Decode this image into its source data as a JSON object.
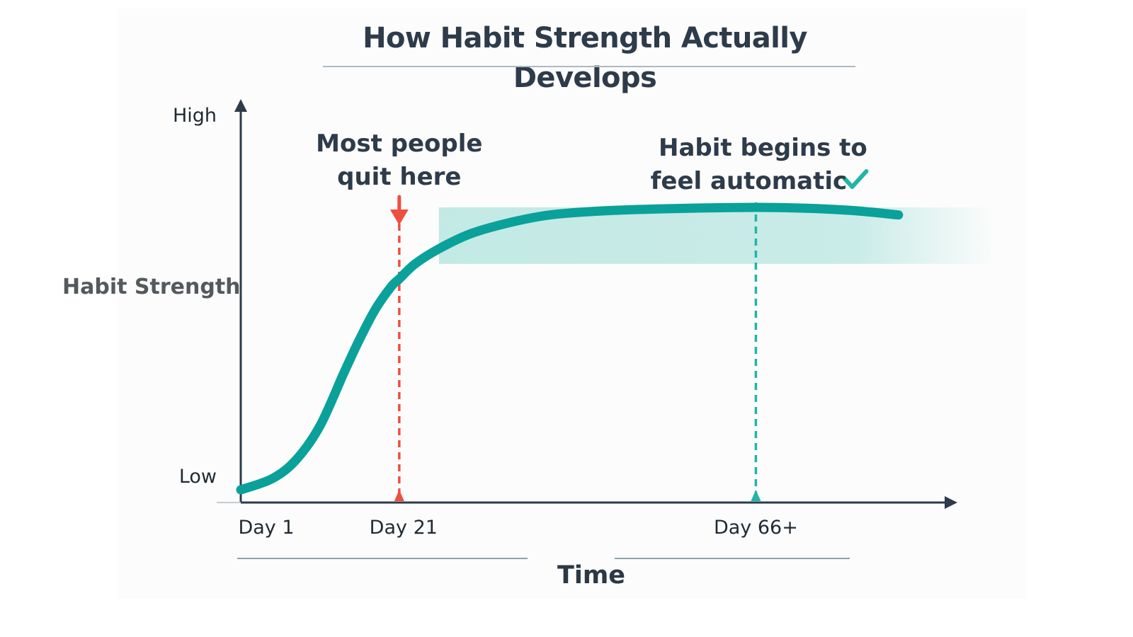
{
  "chart_data": {
    "type": "line",
    "title": "How Habit Strength Actually Develops",
    "xlabel": "Time",
    "ylabel": "Habit Strength",
    "x_ticks": [
      {
        "label": "Day 1",
        "value": 1
      },
      {
        "label": "Day 21",
        "value": 21
      },
      {
        "label": "Day 66+",
        "value": 66
      }
    ],
    "y_ticks": [
      {
        "label": "Low",
        "value": 0
      },
      {
        "label": "High",
        "value": 1
      }
    ],
    "xlim": [
      1,
      90
    ],
    "ylim": [
      0,
      1
    ],
    "grid": false,
    "series": [
      {
        "x": [
          1,
          5,
          8,
          11,
          14,
          16,
          18,
          20,
          21,
          23,
          26,
          30,
          35,
          40,
          46,
          52,
          58,
          66,
          72,
          78,
          84
        ],
        "y": [
          0.03,
          0.06,
          0.11,
          0.2,
          0.34,
          0.43,
          0.51,
          0.57,
          0.59,
          0.63,
          0.67,
          0.71,
          0.74,
          0.76,
          0.77,
          0.775,
          0.778,
          0.78,
          0.778,
          0.772,
          0.76
        ]
      }
    ],
    "plateau_band": {
      "y_from": 0.63,
      "y_to": 0.78,
      "x_from": 26
    },
    "annotations": [
      {
        "lines": [
          "Most people",
          "quit here"
        ],
        "x": 21,
        "color": "#ee4f3f"
      },
      {
        "lines": [
          "Habit begins to",
          "feel automatic"
        ],
        "x": 66,
        "color": "#21b5a8",
        "check_icon": true
      }
    ]
  },
  "colors": {
    "curve": "#0aa19a",
    "axis": "#2d3b4a",
    "quit_marker": "#ee4f3f",
    "automatic_marker": "#21b5a8",
    "plateau_fill": "#b9e6e1",
    "title_text": "#2d3b4a"
  }
}
